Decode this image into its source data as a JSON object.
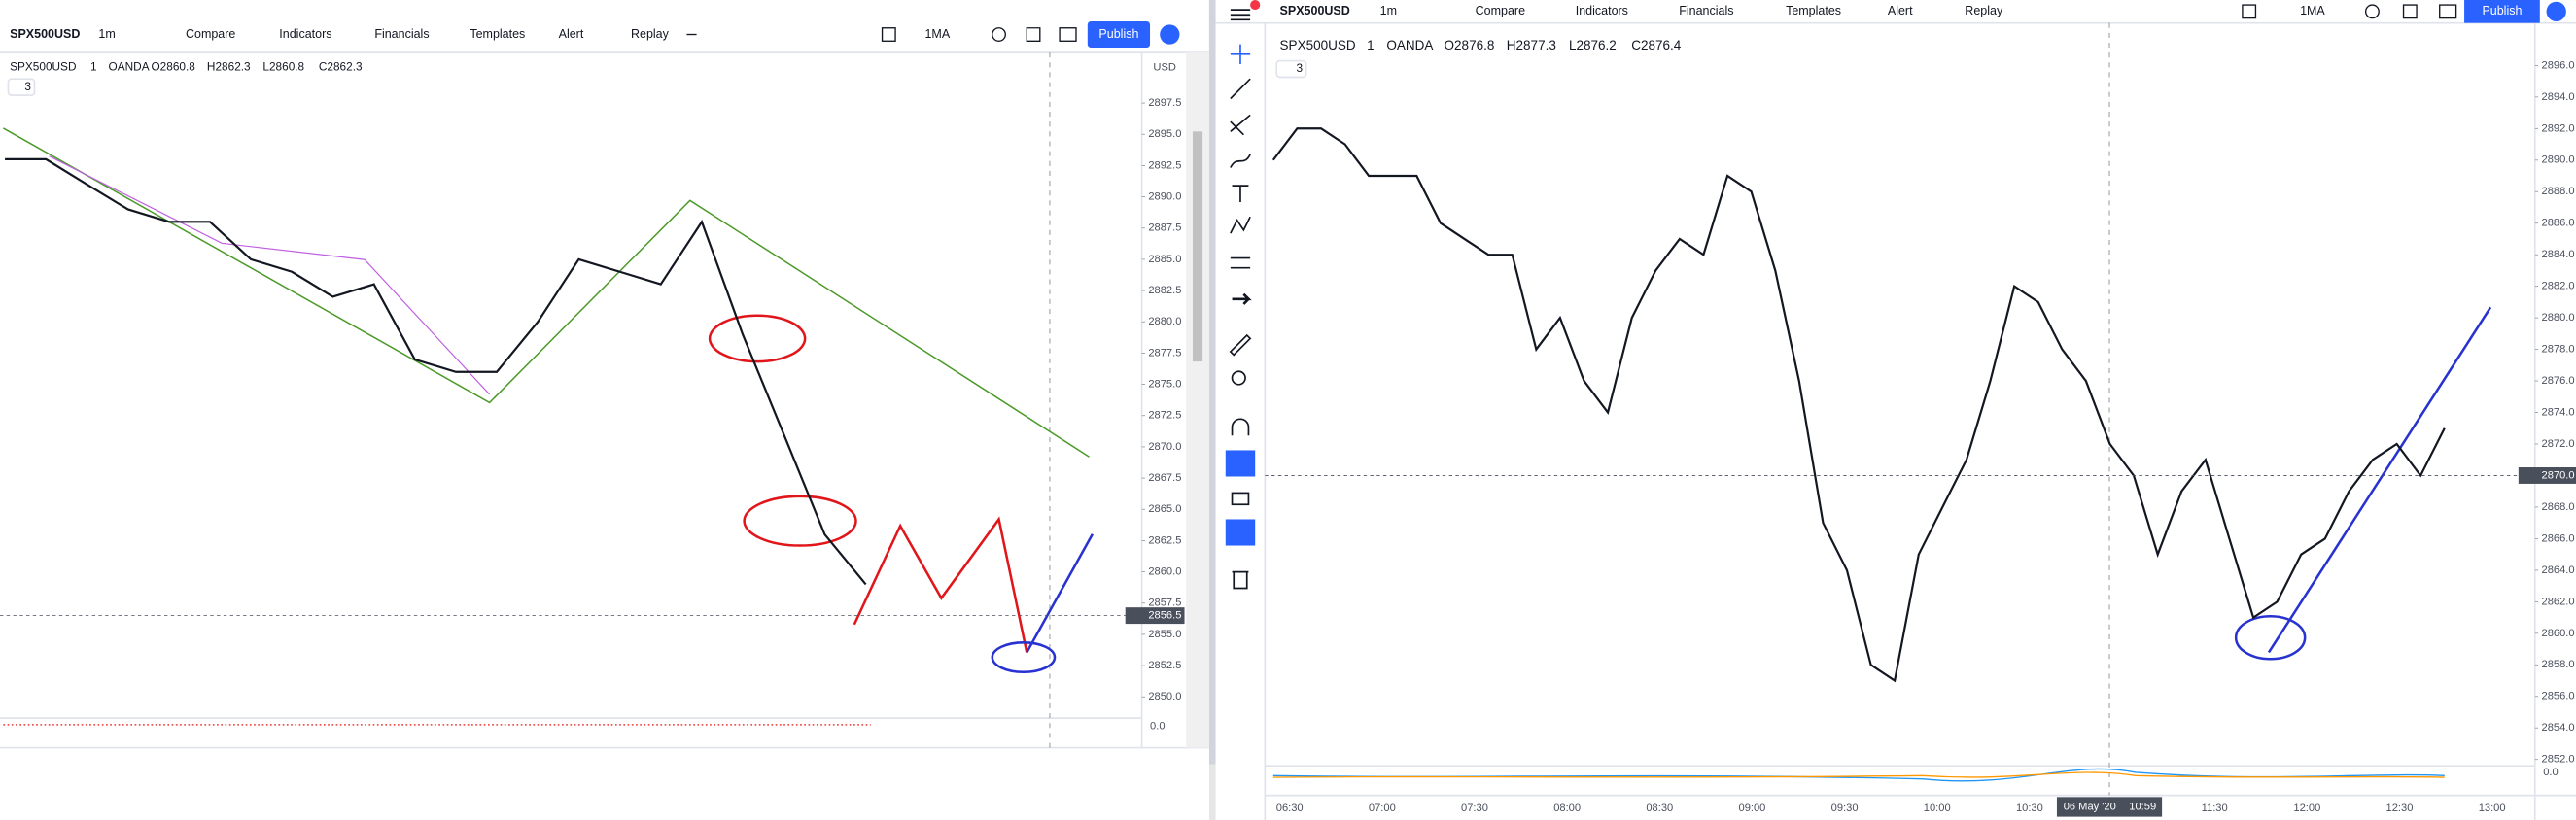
{
  "left_window": {
    "toolbar": {
      "symbol": "SPX500USD",
      "interval": "1m",
      "items": [
        "Compare",
        "Indicators",
        "Financials",
        "Templates",
        "Alert",
        "Replay"
      ],
      "study": "1MA",
      "publish": "Publish"
    },
    "legend": {
      "symbol": "SPX500USD",
      "interval": "1",
      "source": "OANDA",
      "ohlc": [
        "O2860.8",
        "H2862.3",
        "L2860.8",
        "C2862.3"
      ],
      "collapse": "3"
    },
    "currency": "USD",
    "indicator_zero": "0.0",
    "chart": {
      "type": "line",
      "values": [
        2893,
        2893,
        2891,
        2889,
        2888,
        2888,
        2885,
        2884,
        2882,
        2883,
        2877,
        2876,
        2876,
        2880,
        2885,
        2884,
        2883,
        2888,
        2879,
        2871,
        2863,
        2859
      ],
      "color": "#131722",
      "ylim": [
        2848.3,
        2901.8
      ],
      "yticks": [
        2897.5,
        {
          "value": 2895,
          "label": "2895.0"
        },
        2892.5,
        {
          "value": 2890,
          "label": "2890.0"
        },
        2887.5,
        {
          "value": 2885,
          "label": "2885.0"
        },
        2882.5,
        {
          "value": 2880,
          "label": "2880.0"
        },
        2877.5,
        {
          "value": 2875,
          "label": "2875.0"
        },
        2872.5,
        {
          "value": 2870,
          "label": "2870.0"
        },
        2867.5,
        {
          "value": 2865,
          "label": "2865.0"
        },
        2862.5,
        {
          "value": 2860,
          "label": "2860.0"
        },
        2857.5,
        {
          "value": 2855,
          "label": "2855.0"
        },
        2852.5,
        {
          "value": 2850,
          "label": "2850.0"
        }
      ],
      "current_price": 2856.5
    }
  },
  "right_window": {
    "toolbar": {
      "symbol": "SPX500USD",
      "interval": "1m",
      "items": [
        "Compare",
        "Indicators",
        "Financials",
        "Templates",
        "Alert",
        "Replay"
      ],
      "study": "1MA",
      "publish": "Publish"
    },
    "legend": {
      "symbol": "SPX500USD",
      "interval": "1",
      "source": "OANDA",
      "ohlc": [
        "O2876.8",
        "H2877.3",
        "L2876.2",
        "C2876.4"
      ],
      "collapse": "3"
    },
    "indicator_zero": "0.0",
    "crosshair": {
      "date": "06 May '20",
      "time": "10:59"
    },
    "chart": {
      "type": "line",
      "values": [
        2890,
        2892,
        2892,
        2891,
        2889,
        2889,
        2889,
        2886,
        2885,
        2884,
        2884,
        2878,
        2880,
        2876,
        2874,
        2880,
        2883,
        2885,
        2884,
        2889,
        2888,
        2883,
        2876,
        2867,
        2864,
        2858,
        2857,
        2865,
        2868,
        2871,
        2876,
        2882,
        2881,
        2878,
        2876,
        2872,
        2870,
        2865,
        2869,
        2871,
        2866,
        2861,
        2862,
        2865,
        2866,
        2869,
        2871,
        2872,
        2870,
        2873
      ],
      "color": "#131722",
      "ylim": [
        2851.6,
        2896.4
      ],
      "yticks": [
        {
          "value": 2896,
          "label": "2896.0"
        },
        {
          "value": 2894,
          "label": "2894.0"
        },
        {
          "value": 2892,
          "label": "2892.0"
        },
        {
          "value": 2890,
          "label": "2890.0"
        },
        {
          "value": 2888,
          "label": "2888.0"
        },
        {
          "value": 2886,
          "label": "2886.0"
        },
        {
          "value": 2884,
          "label": "2884.0"
        },
        {
          "value": 2882,
          "label": "2882.0"
        },
        {
          "value": 2880,
          "label": "2880.0"
        },
        {
          "value": 2878,
          "label": "2878.0"
        },
        {
          "value": 2876,
          "label": "2876.0"
        },
        {
          "value": 2874,
          "label": "2874.0"
        },
        {
          "value": 2872,
          "label": "2872.0"
        },
        {
          "value": 2870,
          "label": "2870.0"
        },
        {
          "value": 2868,
          "label": "2868.0"
        },
        {
          "value": 2866,
          "label": "2866.0"
        },
        {
          "value": 2864,
          "label": "2864.0"
        },
        {
          "value": 2862,
          "label": "2862.0"
        },
        {
          "value": 2860,
          "label": "2860.0"
        },
        {
          "value": 2858,
          "label": "2858.0"
        },
        {
          "value": 2856,
          "label": "2856.0"
        },
        {
          "value": 2854,
          "label": "2854.0"
        },
        {
          "value": 2852,
          "label": "2852.0"
        }
      ],
      "x_labels": [
        "06:30",
        "07:00",
        "07:30",
        "08:00",
        "08:30",
        "09:00",
        "09:30",
        "10:00",
        "10:30",
        null,
        "11:30",
        "12:00",
        "12:30",
        "13:00"
      ],
      "current_price": {
        "value": 2870,
        "label": "2870.0"
      }
    }
  }
}
